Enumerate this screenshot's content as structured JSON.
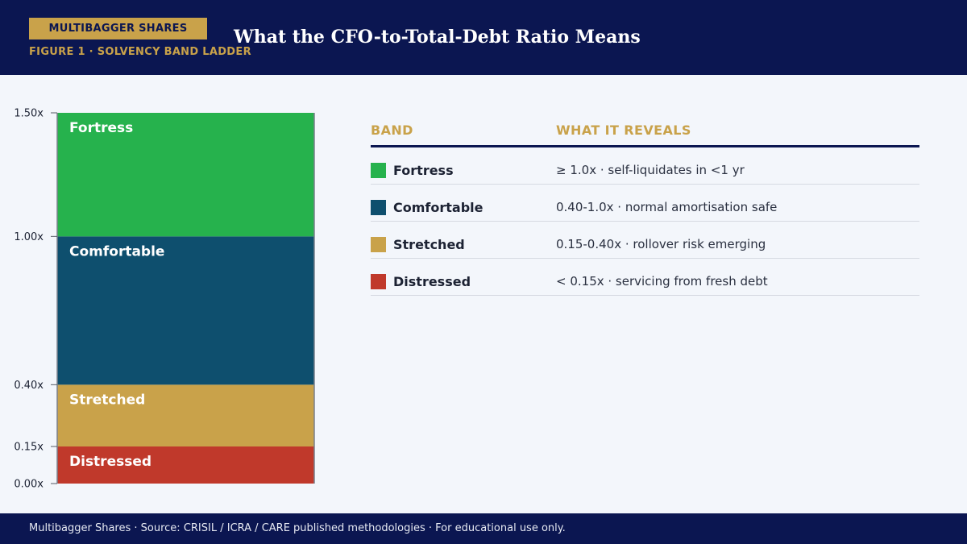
{
  "header": {
    "brand": "MULTIBAGGER SHARES",
    "figure_label": "FIGURE 1 · SOLVENCY BAND LADDER",
    "title": "What the CFO-to-Total-Debt Ratio Means"
  },
  "chart_data": {
    "type": "bar",
    "stacked": true,
    "ylim": [
      0,
      1.5
    ],
    "yticks": [
      "0.00x",
      "0.15x",
      "0.40x",
      "1.00x",
      "1.50x"
    ],
    "ytick_values": [
      0,
      0.15,
      0.4,
      1.0,
      1.5
    ],
    "bands": [
      {
        "name": "Distressed",
        "from": 0,
        "to": 0.15,
        "color": "#c0392b"
      },
      {
        "name": "Stretched",
        "from": 0.15,
        "to": 0.4,
        "color": "#c9a24a"
      },
      {
        "name": "Comfortable",
        "from": 0.4,
        "to": 1.0,
        "color": "#0e4f6e"
      },
      {
        "name": "Fortress",
        "from": 1.0,
        "to": 1.5,
        "color": "#26b24d"
      }
    ]
  },
  "legend": {
    "col_band": "BAND",
    "col_reveal": "WHAT IT REVEALS",
    "rows": [
      {
        "band": "Fortress",
        "reveal": "≥ 1.0x · self-liquidates in <1 yr",
        "color": "#26b24d"
      },
      {
        "band": "Comfortable",
        "reveal": "0.40-1.0x · normal amortisation safe",
        "color": "#0e4f6e"
      },
      {
        "band": "Stretched",
        "reveal": "0.15-0.40x · rollover risk emerging",
        "color": "#c9a24a"
      },
      {
        "band": "Distressed",
        "reveal": "< 0.15x · servicing from fresh debt",
        "color": "#c0392b"
      }
    ]
  },
  "footer": {
    "text": "Multibagger Shares · Source: CRISIL / ICRA / CARE published methodologies · For educational use only."
  }
}
